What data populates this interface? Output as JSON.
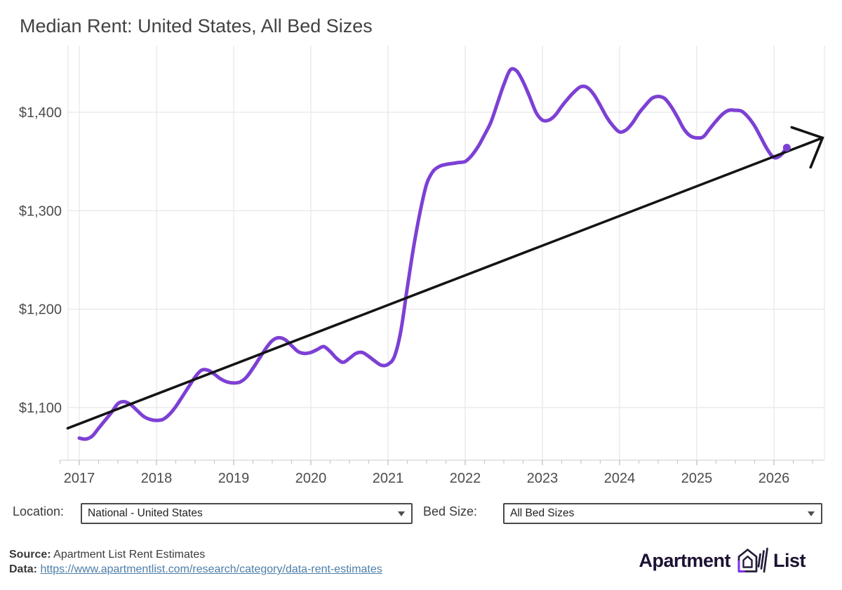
{
  "title": "Median Rent: United States, All Bed Sizes",
  "chart_data": {
    "type": "line",
    "title": "Median Rent: United States, All Bed Sizes",
    "x_years": [
      "2017",
      "2018",
      "2019",
      "2020",
      "2021",
      "2022",
      "2023",
      "2024",
      "2025",
      "2026"
    ],
    "y_ticks": [
      {
        "value": 1100,
        "label": "$1,100"
      },
      {
        "value": 1200,
        "label": "$1,200"
      },
      {
        "value": 1300,
        "label": "$1,300"
      },
      {
        "value": 1400,
        "label": "$1,400"
      }
    ],
    "xlim": [
      2016.85,
      2026.65
    ],
    "ylim": [
      1050,
      1465
    ],
    "grid": true,
    "legend": "none",
    "series": [
      {
        "name": "Median Rent (monthly)",
        "color": "#7d40d4",
        "monthly": [
          {
            "year": 2017,
            "values": [
              1069,
              1068,
              1071,
              1079,
              1087,
              1095,
              1104,
              1106,
              1103,
              1097,
              1091,
              1088
            ]
          },
          {
            "year": 2018,
            "values": [
              1087,
              1088,
              1093,
              1101,
              1111,
              1121,
              1131,
              1138,
              1138,
              1134,
              1129,
              1126
            ]
          },
          {
            "year": 2019,
            "values": [
              1125,
              1126,
              1131,
              1140,
              1150,
              1160,
              1168,
              1171,
              1169,
              1163,
              1157,
              1155
            ]
          },
          {
            "year": 2020,
            "values": [
              1156,
              1159,
              1162,
              1157,
              1150,
              1146,
              1150,
              1155,
              1156,
              1152,
              1147,
              1143
            ]
          },
          {
            "year": 2021,
            "values": [
              1144,
              1152,
              1178,
              1222,
              1264,
              1299,
              1327,
              1340,
              1345,
              1347,
              1348,
              1349
            ]
          },
          {
            "year": 2022,
            "values": [
              1350,
              1356,
              1365,
              1377,
              1390,
              1409,
              1428,
              1443,
              1442,
              1431,
              1416,
              1400
            ]
          },
          {
            "year": 2023,
            "values": [
              1392,
              1392,
              1397,
              1406,
              1414,
              1421,
              1426,
              1425,
              1418,
              1407,
              1395,
              1386
            ]
          },
          {
            "year": 2024,
            "values": [
              1380,
              1382,
              1389,
              1399,
              1407,
              1414,
              1416,
              1414,
              1406,
              1395,
              1383,
              1376
            ]
          },
          {
            "year": 2025,
            "values": [
              1374,
              1375,
              1383,
              1391,
              1398,
              1402,
              1402,
              1401,
              1395,
              1386,
              1374,
              1362
            ]
          },
          {
            "year": 2026,
            "values": [
              1354,
              1356,
              1364
            ]
          }
        ]
      }
    ],
    "endpoint_dot": true,
    "trend_arrow": {
      "from": {
        "x": 2016.85,
        "y": 1079
      },
      "to": {
        "x": 2026.63,
        "y": 1374
      },
      "color": "#141414"
    },
    "colors": {
      "gridline": "#e8e8e8",
      "axis_line": "#dedede",
      "tick": "#c9c9c9",
      "tick_label": "#4c4c4c"
    }
  },
  "controls": {
    "location_label": "Location:",
    "location_value": "National - United States",
    "bed_size_label": "Bed Size:",
    "bed_size_value": "All Bed Sizes"
  },
  "footer": {
    "source_label": "Source:",
    "source_text": "Apartment List Rent Estimates",
    "data_label": "Data:",
    "data_link": "https://www.apartmentlist.com/research/category/data-rent-estimates"
  },
  "logo": {
    "left": "Apartment",
    "right": "List"
  }
}
